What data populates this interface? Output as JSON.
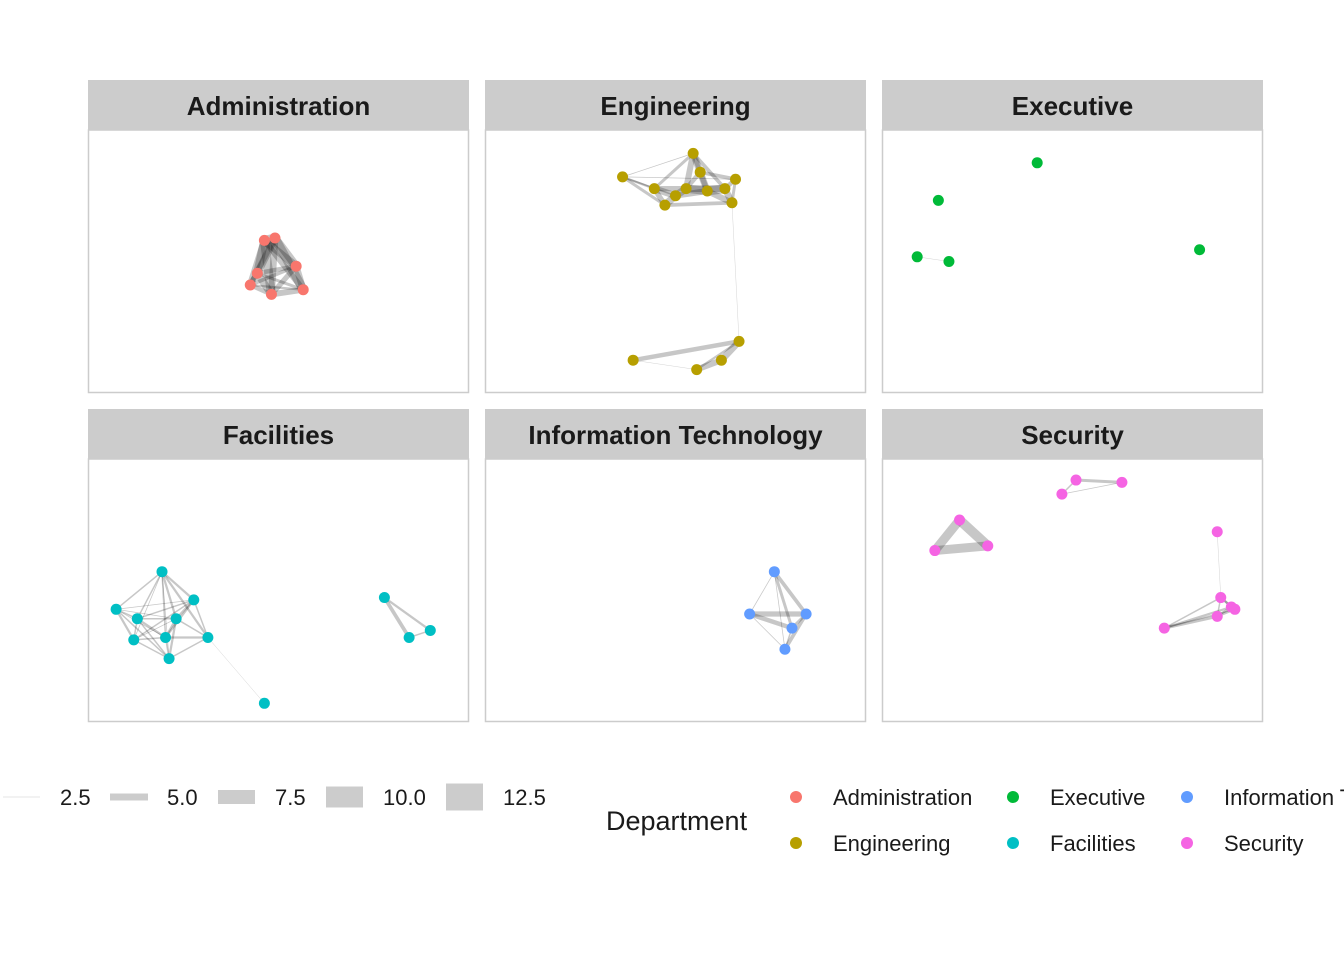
{
  "chart_data": {
    "type": "network",
    "colors": {
      "Administration": "#F8766D",
      "Engineering": "#B79F00",
      "Executive": "#00BA38",
      "Facilities": "#00BFC4",
      "Information Technology": "#619CFF",
      "Security": "#F564E3"
    },
    "width_legend": {
      "values": [
        "2.5",
        "5.0",
        "7.5",
        "10.0",
        "12.5"
      ]
    },
    "color_legend": {
      "title": "Department",
      "items": [
        "Administration",
        "Engineering",
        "Executive",
        "Facilities",
        "Information Technology",
        "Security"
      ]
    },
    "panels": [
      {
        "title": "Administration",
        "nodes": [
          [
            0.46,
            0.41
          ],
          [
            0.49,
            0.4
          ],
          [
            0.44,
            0.55
          ],
          [
            0.55,
            0.52
          ],
          [
            0.42,
            0.6
          ],
          [
            0.48,
            0.64
          ],
          [
            0.57,
            0.62
          ]
        ],
        "edges": [
          [
            0,
            1,
            12
          ],
          [
            0,
            2,
            11
          ],
          [
            0,
            3,
            10
          ],
          [
            0,
            4,
            9
          ],
          [
            0,
            5,
            12
          ],
          [
            0,
            6,
            8
          ],
          [
            1,
            2,
            10
          ],
          [
            1,
            3,
            11
          ],
          [
            1,
            4,
            7
          ],
          [
            1,
            5,
            9
          ],
          [
            1,
            6,
            12
          ],
          [
            2,
            3,
            6
          ],
          [
            2,
            4,
            8
          ],
          [
            2,
            5,
            10
          ],
          [
            2,
            6,
            4
          ],
          [
            3,
            4,
            5
          ],
          [
            3,
            5,
            7
          ],
          [
            3,
            6,
            9
          ],
          [
            4,
            5,
            6
          ],
          [
            4,
            6,
            3
          ],
          [
            5,
            6,
            8
          ]
        ]
      },
      {
        "title": "Engineering",
        "nodes": [
          [
            0.35,
            0.14
          ],
          [
            0.55,
            0.04
          ],
          [
            0.57,
            0.12
          ],
          [
            0.67,
            0.15
          ],
          [
            0.44,
            0.19
          ],
          [
            0.53,
            0.19
          ],
          [
            0.5,
            0.22
          ],
          [
            0.59,
            0.2
          ],
          [
            0.64,
            0.19
          ],
          [
            0.47,
            0.26
          ],
          [
            0.66,
            0.25
          ],
          [
            0.68,
            0.84
          ],
          [
            0.63,
            0.92
          ],
          [
            0.38,
            0.92
          ],
          [
            0.56,
            0.96
          ]
        ],
        "edges": [
          [
            0,
            1,
            1
          ],
          [
            0,
            4,
            3
          ],
          [
            0,
            9,
            4
          ],
          [
            0,
            3,
            1
          ],
          [
            0,
            6,
            2
          ],
          [
            1,
            2,
            6
          ],
          [
            1,
            5,
            8
          ],
          [
            1,
            7,
            9
          ],
          [
            1,
            8,
            5
          ],
          [
            1,
            4,
            4
          ],
          [
            2,
            3,
            5
          ],
          [
            2,
            7,
            7
          ],
          [
            2,
            5,
            6
          ],
          [
            3,
            8,
            6
          ],
          [
            3,
            10,
            4
          ],
          [
            4,
            6,
            9
          ],
          [
            4,
            9,
            7
          ],
          [
            5,
            6,
            10
          ],
          [
            5,
            7,
            11
          ],
          [
            5,
            8,
            9
          ],
          [
            6,
            7,
            8
          ],
          [
            6,
            9,
            10
          ],
          [
            7,
            8,
            12
          ],
          [
            7,
            10,
            8
          ],
          [
            8,
            10,
            9
          ],
          [
            9,
            10,
            5
          ],
          [
            4,
            5,
            7
          ],
          [
            10,
            11,
            0.3
          ],
          [
            11,
            13,
            6
          ],
          [
            11,
            12,
            9
          ],
          [
            12,
            14,
            8
          ],
          [
            13,
            14,
            0.5
          ],
          [
            11,
            14,
            3
          ]
        ]
      },
      {
        "title": "Executive",
        "nodes": [
          [
            0.4,
            0.08
          ],
          [
            0.12,
            0.24
          ],
          [
            0.06,
            0.48
          ],
          [
            0.15,
            0.5
          ],
          [
            0.86,
            0.45
          ]
        ],
        "edges": [
          [
            2,
            3,
            0.5
          ]
        ]
      },
      {
        "title": "Facilities",
        "nodes": [
          [
            0.17,
            0.42
          ],
          [
            0.26,
            0.54
          ],
          [
            0.04,
            0.58
          ],
          [
            0.1,
            0.62
          ],
          [
            0.21,
            0.62
          ],
          [
            0.09,
            0.71
          ],
          [
            0.18,
            0.7
          ],
          [
            0.3,
            0.7
          ],
          [
            0.19,
            0.79
          ],
          [
            0.46,
            0.98
          ],
          [
            0.8,
            0.53
          ],
          [
            0.87,
            0.7
          ],
          [
            0.93,
            0.67
          ]
        ],
        "edges": [
          [
            0,
            1,
            3
          ],
          [
            0,
            2,
            2
          ],
          [
            0,
            3,
            2
          ],
          [
            0,
            4,
            3
          ],
          [
            0,
            5,
            1
          ],
          [
            0,
            6,
            2
          ],
          [
            0,
            7,
            3
          ],
          [
            0,
            8,
            1
          ],
          [
            1,
            2,
            1
          ],
          [
            1,
            3,
            2
          ],
          [
            1,
            4,
            3
          ],
          [
            1,
            5,
            2
          ],
          [
            1,
            6,
            3
          ],
          [
            1,
            7,
            2
          ],
          [
            2,
            3,
            2
          ],
          [
            2,
            4,
            1
          ],
          [
            2,
            5,
            3
          ],
          [
            2,
            6,
            1
          ],
          [
            2,
            8,
            2
          ],
          [
            3,
            4,
            2
          ],
          [
            3,
            5,
            2
          ],
          [
            3,
            6,
            3
          ],
          [
            3,
            8,
            2
          ],
          [
            4,
            5,
            1
          ],
          [
            4,
            6,
            3
          ],
          [
            4,
            7,
            2
          ],
          [
            4,
            8,
            3
          ],
          [
            5,
            6,
            2
          ],
          [
            5,
            8,
            2
          ],
          [
            6,
            7,
            3
          ],
          [
            6,
            8,
            2
          ],
          [
            7,
            8,
            2
          ],
          [
            7,
            9,
            0.4
          ],
          [
            10,
            11,
            5
          ],
          [
            10,
            12,
            3
          ],
          [
            11,
            12,
            2
          ]
        ]
      },
      {
        "title": "Information Technology",
        "nodes": [
          [
            0.78,
            0.42
          ],
          [
            0.71,
            0.6
          ],
          [
            0.87,
            0.6
          ],
          [
            0.83,
            0.66
          ],
          [
            0.81,
            0.75
          ]
        ],
        "edges": [
          [
            0,
            1,
            1
          ],
          [
            0,
            2,
            5
          ],
          [
            0,
            3,
            4
          ],
          [
            1,
            2,
            7
          ],
          [
            1,
            3,
            6
          ],
          [
            2,
            3,
            4
          ],
          [
            2,
            4,
            5
          ],
          [
            1,
            4,
            1
          ],
          [
            3,
            4,
            2
          ],
          [
            0,
            4,
            1
          ]
        ]
      },
      {
        "title": "Security",
        "nodes": [
          [
            0.18,
            0.2
          ],
          [
            0.11,
            0.33
          ],
          [
            0.26,
            0.31
          ],
          [
            0.47,
            0.09
          ],
          [
            0.51,
            0.03
          ],
          [
            0.64,
            0.04
          ],
          [
            0.91,
            0.25
          ],
          [
            0.92,
            0.53
          ],
          [
            0.95,
            0.57
          ],
          [
            0.91,
            0.61
          ],
          [
            0.96,
            0.58
          ],
          [
            0.76,
            0.66
          ]
        ],
        "edges": [
          [
            0,
            1,
            12
          ],
          [
            0,
            2,
            13
          ],
          [
            1,
            2,
            12
          ],
          [
            3,
            4,
            2
          ],
          [
            3,
            5,
            1
          ],
          [
            4,
            5,
            4
          ],
          [
            6,
            7,
            0.4
          ],
          [
            7,
            8,
            3
          ],
          [
            7,
            9,
            2
          ],
          [
            7,
            10,
            3
          ],
          [
            7,
            11,
            2
          ],
          [
            8,
            9,
            3
          ],
          [
            8,
            10,
            2
          ],
          [
            9,
            10,
            3
          ],
          [
            9,
            11,
            4
          ],
          [
            8,
            11,
            3
          ],
          [
            10,
            11,
            2
          ]
        ]
      }
    ]
  }
}
